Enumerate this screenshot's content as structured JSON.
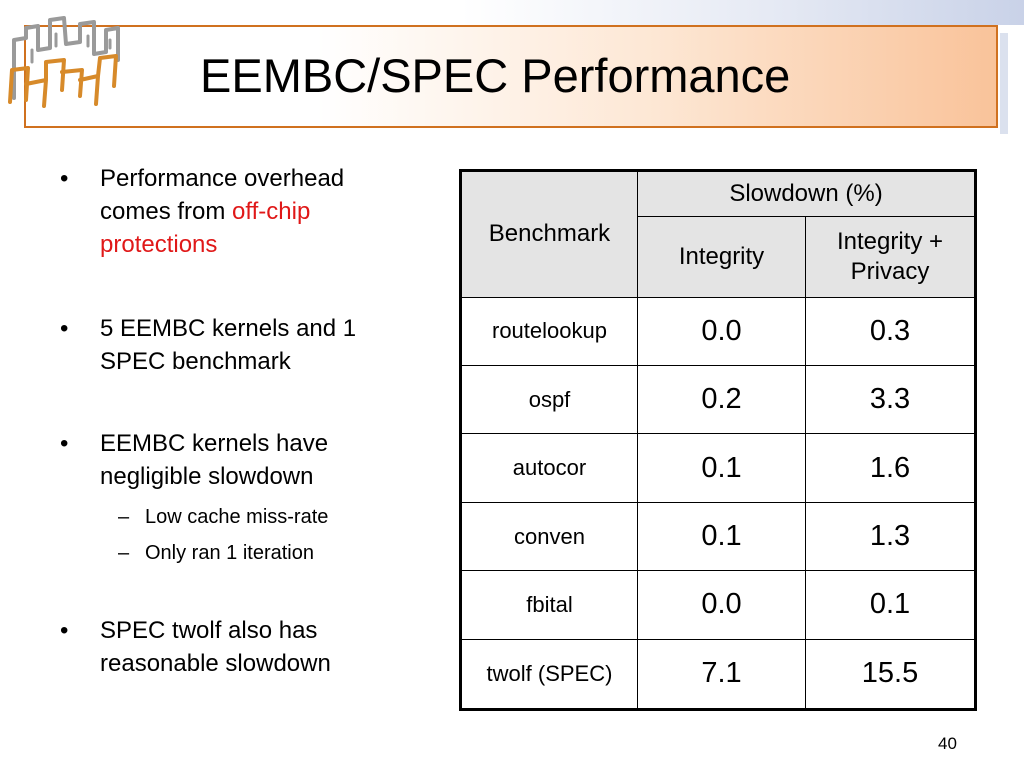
{
  "slide": {
    "title": "EEMBC/SPEC Performance",
    "page_number": "40"
  },
  "bullets": [
    {
      "text_before": "Performance overhead comes from ",
      "highlight": "off-chip protections",
      "text_after": ""
    },
    {
      "text": "5 EEMBC kernels and 1 SPEC benchmark"
    },
    {
      "text": "EEMBC kernels have negligible slowdown",
      "subitems": [
        "Low cache miss-rate",
        "Only ran 1 iteration"
      ]
    },
    {
      "text": "SPEC twolf also has reasonable slowdown"
    }
  ],
  "table": {
    "header_benchmark": "Benchmark",
    "header_group": "Slowdown (%)",
    "header_integrity": "Integrity",
    "header_integrity_privacy": "Integrity + Privacy",
    "rows": [
      {
        "benchmark": "routelookup",
        "integrity": "0.0",
        "integrity_privacy": "0.3"
      },
      {
        "benchmark": "ospf",
        "integrity": "0.2",
        "integrity_privacy": "3.3"
      },
      {
        "benchmark": "autocor",
        "integrity": "0.1",
        "integrity_privacy": "1.6"
      },
      {
        "benchmark": "conven",
        "integrity": "0.1",
        "integrity_privacy": "1.3"
      },
      {
        "benchmark": "fbital",
        "integrity": "0.0",
        "integrity_privacy": "0.1"
      },
      {
        "benchmark": "twolf (SPEC)",
        "integrity": "7.1",
        "integrity_privacy": "15.5"
      }
    ]
  },
  "colors": {
    "accent_orange": "#d0711f",
    "highlight_red": "#e01818",
    "header_fill": "#e4e4e4"
  }
}
